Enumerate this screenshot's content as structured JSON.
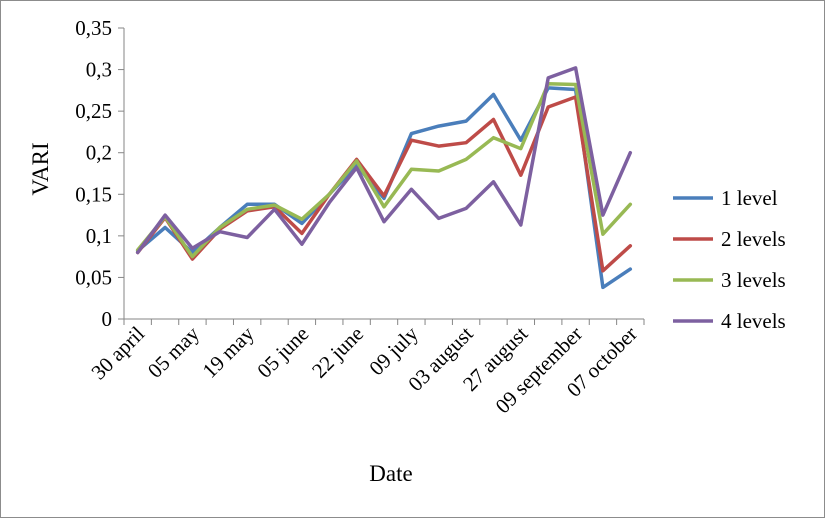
{
  "chart_data": {
    "type": "line",
    "xlabel": "Date",
    "ylabel": "VARI",
    "ylim": [
      0,
      0.35
    ],
    "y_ticks": [
      "0",
      "0,05",
      "0,1",
      "0,15",
      "0,2",
      "0,25",
      "0,3",
      "0,35"
    ],
    "x_tick_labels": [
      "30 april",
      "05 may",
      "19 may",
      "05 june",
      "22 june",
      "09 july",
      "03 august",
      "27 august",
      "09 september",
      "07 october"
    ],
    "grid": false,
    "legend_position": "right",
    "series": [
      {
        "name": "1 level",
        "color": "#4a7ebb",
        "values": [
          0.082,
          0.11,
          0.08,
          0.11,
          0.138,
          0.138,
          0.115,
          0.15,
          0.185,
          0.145,
          0.223,
          0.232,
          0.238,
          0.27,
          0.215,
          0.278,
          0.276,
          0.038,
          0.06
        ]
      },
      {
        "name": "2 levels",
        "color": "#be4b48",
        "values": [
          0.08,
          0.122,
          0.072,
          0.108,
          0.13,
          0.135,
          0.103,
          0.15,
          0.192,
          0.148,
          0.215,
          0.208,
          0.212,
          0.24,
          0.173,
          0.255,
          0.267,
          0.058,
          0.088
        ]
      },
      {
        "name": "3 levels",
        "color": "#98b954",
        "values": [
          0.083,
          0.123,
          0.075,
          0.11,
          0.132,
          0.137,
          0.12,
          0.15,
          0.19,
          0.135,
          0.18,
          0.178,
          0.192,
          0.218,
          0.205,
          0.283,
          0.282,
          0.102,
          0.138
        ]
      },
      {
        "name": "4 levels",
        "color": "#7d60a0",
        "values": [
          0.08,
          0.125,
          0.085,
          0.105,
          0.098,
          0.132,
          0.09,
          0.14,
          0.182,
          0.117,
          0.156,
          0.121,
          0.133,
          0.165,
          0.113,
          0.29,
          0.302,
          0.125,
          0.2
        ]
      }
    ]
  }
}
